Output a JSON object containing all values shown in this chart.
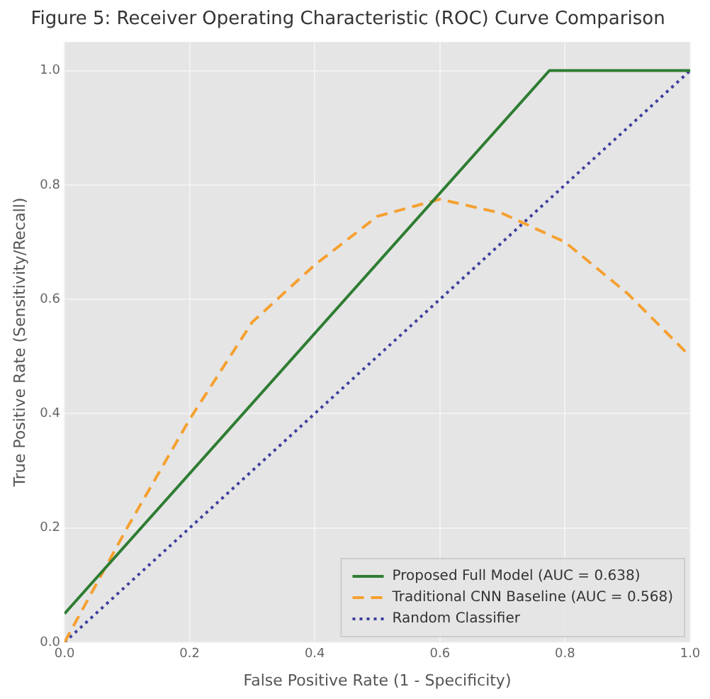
{
  "chart_data": {
    "type": "line",
    "title": "Figure 5: Receiver Operating Characteristic (ROC) Curve Comparison",
    "xlabel": "False Positive Rate (1 - Specificity)",
    "ylabel": "True Positive Rate (Sensitivity/Recall)",
    "xlim": [
      0,
      1
    ],
    "ylim": [
      0,
      1.05
    ],
    "xticks": [
      {
        "value": 0,
        "label": "0.0"
      },
      {
        "value": 0.2,
        "label": "0.2"
      },
      {
        "value": 0.4,
        "label": "0.4"
      },
      {
        "value": 0.6,
        "label": "0.6"
      },
      {
        "value": 0.8,
        "label": "0.8"
      },
      {
        "value": 1,
        "label": "1.0"
      }
    ],
    "yticks": [
      {
        "value": 0,
        "label": "0.0"
      },
      {
        "value": 0.2,
        "label": "0.2"
      },
      {
        "value": 0.4,
        "label": "0.4"
      },
      {
        "value": 0.6,
        "label": "0.6"
      },
      {
        "value": 0.8,
        "label": "0.8"
      },
      {
        "value": 1,
        "label": "1.0"
      }
    ],
    "grid": true,
    "legend": "bottom right",
    "marker": "none",
    "series": [
      {
        "name": "Proposed Full Model (AUC = 0.638)",
        "color": "#2e7d32",
        "line_style": "solid",
        "x": [
          0,
          0.775,
          1
        ],
        "values": [
          0.05,
          1,
          1
        ]
      },
      {
        "name": "Traditional CNN Baseline (AUC = 0.568)",
        "color": "#f5a030",
        "line_style": "dashed",
        "x": [
          0,
          0.1,
          0.2,
          0.3,
          0.4,
          0.5,
          0.6,
          0.7,
          0.8,
          0.9,
          1
        ],
        "values": [
          0,
          0.2,
          0.39,
          0.56,
          0.66,
          0.745,
          0.775,
          0.75,
          0.7,
          0.61,
          0.5
        ]
      },
      {
        "name": "Random Classifier",
        "color": "#3f3f9f",
        "line_style": "dotted",
        "x": [
          0,
          1
        ],
        "values": [
          0,
          1
        ]
      }
    ]
  }
}
